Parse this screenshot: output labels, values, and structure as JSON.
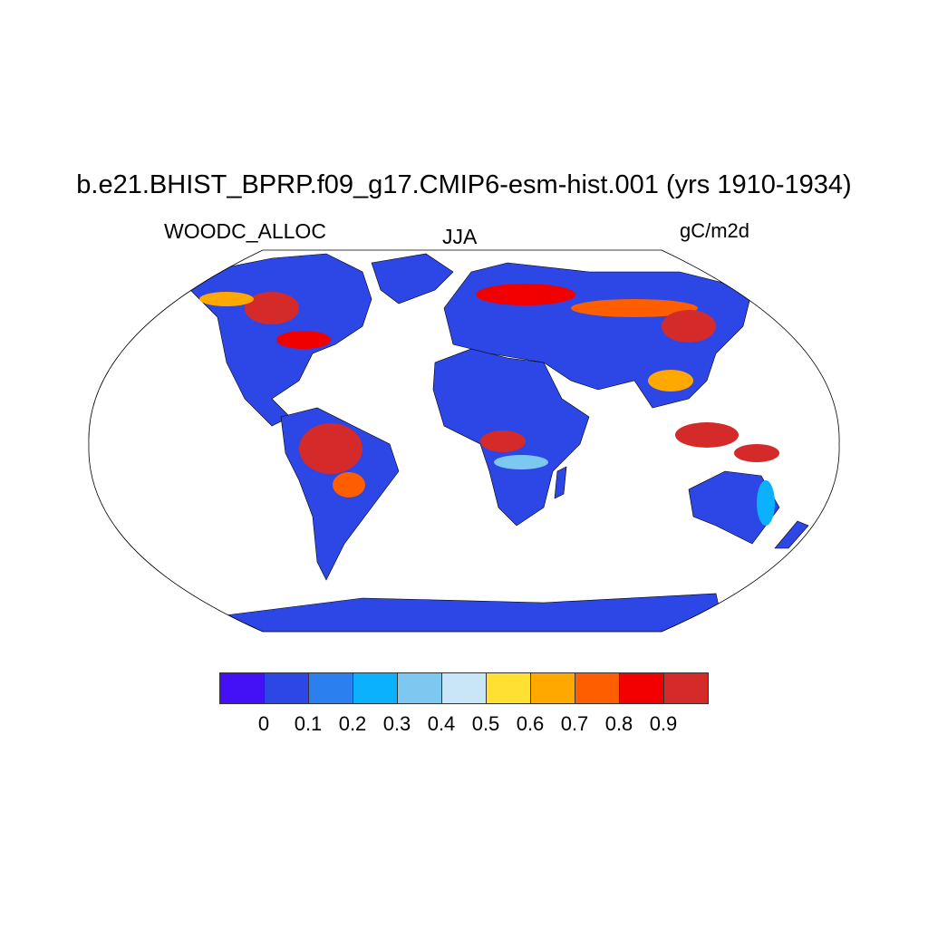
{
  "title": "b.e21.BHIST_BPRP.f09_g17.CMIP6-esm-hist.001 (yrs 1910-1934)",
  "left_label": "WOODC_ALLOC",
  "center_label": "JJA",
  "right_label": "gC/m2d",
  "map": {
    "projection": "Robinson",
    "land_default_color": "#2d46e6",
    "ocean_color": "#ffffff"
  },
  "colorbar": {
    "colors": [
      "#4410f6",
      "#2d46e6",
      "#2b7fef",
      "#0bb1fc",
      "#7cc8f0",
      "#c8e6f7",
      "#ffe033",
      "#ffa800",
      "#ff5e00",
      "#f20000",
      "#d42a2a"
    ],
    "labels": [
      "0",
      "0.1",
      "0.2",
      "0.3",
      "0.4",
      "0.5",
      "0.6",
      "0.7",
      "0.8",
      "0.9"
    ]
  }
}
